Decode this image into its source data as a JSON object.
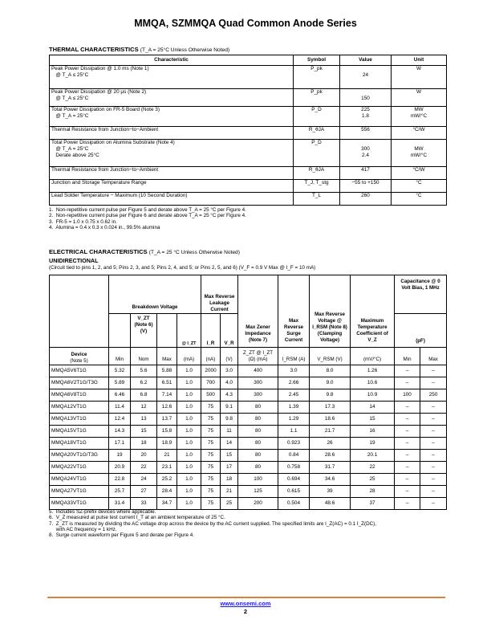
{
  "header": {
    "title": "MMQA, SZMMQA Quad Common Anode Series"
  },
  "thermal": {
    "heading": "THERMAL CHARACTERISTICS",
    "condition": "(T_A = 25°C Unless Otherwise Noted)",
    "columns": [
      "Characteristic",
      "Symbol",
      "Value",
      "Unit"
    ],
    "rows": [
      {
        "char": [
          "Peak Power Dissipation @ 1.0 ms (Note 1)",
          "   @ T_A ≤ 25°C"
        ],
        "symbol": "P_pk",
        "value": [
          "",
          "24"
        ],
        "unit": [
          "W"
        ]
      },
      {
        "char": [
          "Peak Power Dissipation @ 20 μs (Note 2)",
          "   @ T_A ≤ 25°C"
        ],
        "symbol": "P_pk",
        "value": [
          "",
          "150"
        ],
        "unit": [
          "W"
        ]
      },
      {
        "char": [
          "Total Power Dissipation on FR-5 Board (Note 3)",
          "   @ T_A = 25°C"
        ],
        "symbol": "P_D",
        "value": [
          "225",
          "1.8"
        ],
        "unit": [
          "MW",
          "mW/°C"
        ]
      },
      {
        "char": [
          "Thermal Resistance from Junction−to−Ambient"
        ],
        "symbol": "R_θJA",
        "value": [
          "556"
        ],
        "unit": [
          "°C/W"
        ]
      },
      {
        "char": [
          "Total Power Dissipation on Alumina Substrate (Note 4)",
          "   @ T_A = 25°C",
          "   Derate above 25°C"
        ],
        "symbol": "P_D",
        "value": [
          "",
          "300",
          "2.4"
        ],
        "unit": [
          "",
          "MW",
          "mW/°C"
        ]
      },
      {
        "char": [
          "Thermal Resistance from Junction−to−Ambient"
        ],
        "symbol": "R_θJA",
        "value": [
          "417"
        ],
        "unit": [
          "°C/W"
        ]
      },
      {
        "char": [
          "Junction and Storage Temperature Range"
        ],
        "symbol": "T_J, T_stg",
        "value": [
          "−55 to +150"
        ],
        "unit": [
          "°C"
        ]
      },
      {
        "char": [
          "Lead Solder Temperature − Maximum (10 Second Duration)"
        ],
        "symbol": "T_L",
        "value": [
          "260"
        ],
        "unit": [
          "°C"
        ]
      }
    ],
    "notes": [
      "1.  Non-repetitive current pulse per Figure 5 and derate above T_A = 25 °C per Figure 4.",
      "2.  Non-repetitive current pulse per Figure 6 and derate above T_A = 25 °C per Figure 4.",
      "3.  FR-5 = 1.0 x 0.75 x 0.62 in.",
      "4.  Alumina = 0.4 x 0.3 x 0.024 in., 99.5% alumina"
    ]
  },
  "electrical": {
    "heading": "ELECTRICAL CHARACTERISTICS",
    "condition": "(T_A = 25 °C Unless Otherwise Noted)",
    "subheading": "UNIDIRECTIONAL",
    "circuit": "(Circuit tied to pins 1, 2, and 5; Pins 2, 3, and 5; Pins 2, 4, and 5; or Pins 2, 5, and 6) (V_F = 0.9 V Max @ I_F = 10 mA)",
    "headers": {
      "breakdown": "Breakdown Voltage",
      "leakage": "Max Reverse Leakage Current",
      "vzt": "V_ZT (Note 6) (V)",
      "izt": "@ I_ZT",
      "ir": "I_R",
      "vr": "V_R",
      "zener": "Max Zener Impedance (Note 7)",
      "surge": "Max Reverse Surge Current",
      "clamp": "Max Reverse Voltage @ I_RSM (Note 8) (Clamping Voltage)",
      "tc": "Maximum Temperature Coefficient of V_Z",
      "cap": "Capacitance @ 0 Volt Bias, 1 MHz",
      "pf": "(pF)",
      "device": "Device",
      "device_note": "(Note 5)",
      "units": [
        "Min",
        "Nom",
        "Max",
        "(mA)",
        "(nA)",
        "(V)",
        "Z_ZT @ I_ZT (Ω)   (mA)",
        "I_RSM (A)",
        "V_RSM (V)",
        "(mV/°C)",
        "Min",
        "Max"
      ]
    },
    "rows": [
      [
        "MMQA5V6T1G",
        "5.32",
        "5.6",
        "5.88",
        "1.0",
        "2000",
        "3.0",
        "400",
        "3.0",
        "8.0",
        "1.26",
        "–",
        "–"
      ],
      [
        "MMQA6V2T1G/T3G",
        "5.89",
        "6.2",
        "6.51",
        "1.0",
        "700",
        "4.0",
        "300",
        "2.66",
        "9.0",
        "10.6",
        "–",
        "–"
      ],
      [
        "MMQA6V8T1G",
        "6.46",
        "6.8",
        "7.14",
        "1.0",
        "500",
        "4.3",
        "300",
        "2.45",
        "9.8",
        "10.9",
        "100",
        "250"
      ],
      [
        "MMQA12VT1G",
        "11.4",
        "12",
        "12.6",
        "1.0",
        "75",
        "9.1",
        "80",
        "1.39",
        "17.3",
        "14",
        "–",
        "–"
      ],
      [
        "MMQA13VT1G",
        "12.4",
        "13",
        "13.7",
        "1.0",
        "75",
        "9.8",
        "80",
        "1.29",
        "18.6",
        "15",
        "–",
        "–"
      ],
      [
        "MMQA15VT1G",
        "14.3",
        "15",
        "15.8",
        "1.0",
        "75",
        "11",
        "80",
        "1.1",
        "21.7",
        "16",
        "–",
        "–"
      ],
      [
        "MMQA18VT1G",
        "17.1",
        "18",
        "18.9",
        "1.0",
        "75",
        "14",
        "80",
        "0.923",
        "26",
        "19",
        "–",
        "–"
      ],
      [
        "MMQA20VT1G/T3G",
        "19",
        "20",
        "21",
        "1.0",
        "75",
        "15",
        "80",
        "0.84",
        "28.6",
        "20.1",
        "–",
        "–"
      ],
      [
        "MMQA22VT1G",
        "20.9",
        "22",
        "23.1",
        "1.0",
        "75",
        "17",
        "80",
        "0.758",
        "31.7",
        "22",
        "–",
        "–"
      ],
      [
        "MMQA24VT1G",
        "22.8",
        "24",
        "25.2",
        "1.0",
        "75",
        "18",
        "100",
        "0.694",
        "34.6",
        "25",
        "–",
        "–"
      ],
      [
        "MMQA27VT1G",
        "25.7",
        "27",
        "28.4",
        "1.0",
        "75",
        "21",
        "125",
        "0.615",
        "39",
        "28",
        "–",
        "–"
      ],
      [
        "MMQA33VT1G",
        "31.4",
        "33",
        "34.7",
        "1.0",
        "75",
        "25",
        "200",
        "0.504",
        "48.6",
        "37",
        "–",
        "–"
      ]
    ],
    "notes": [
      "5.  Includes SZ-prefix devices where applicable.",
      "6.  V_Z measured at pulse test current I_T at an ambient temperature of 25 °C.",
      "7.  Z_ZT is measured by dividing the AC voltage drop across the device by the AC current supplied. The specified limits are I_Z(AC) = 0.1 I_Z(DC),",
      "     with AC frequency = 1 kHz.",
      "8.  Surge current waveform per Figure 5 and derate per Figure 4."
    ]
  },
  "footer": {
    "url": "www.onsemi.com",
    "page": "2",
    "rule_color": "#d9823b"
  }
}
